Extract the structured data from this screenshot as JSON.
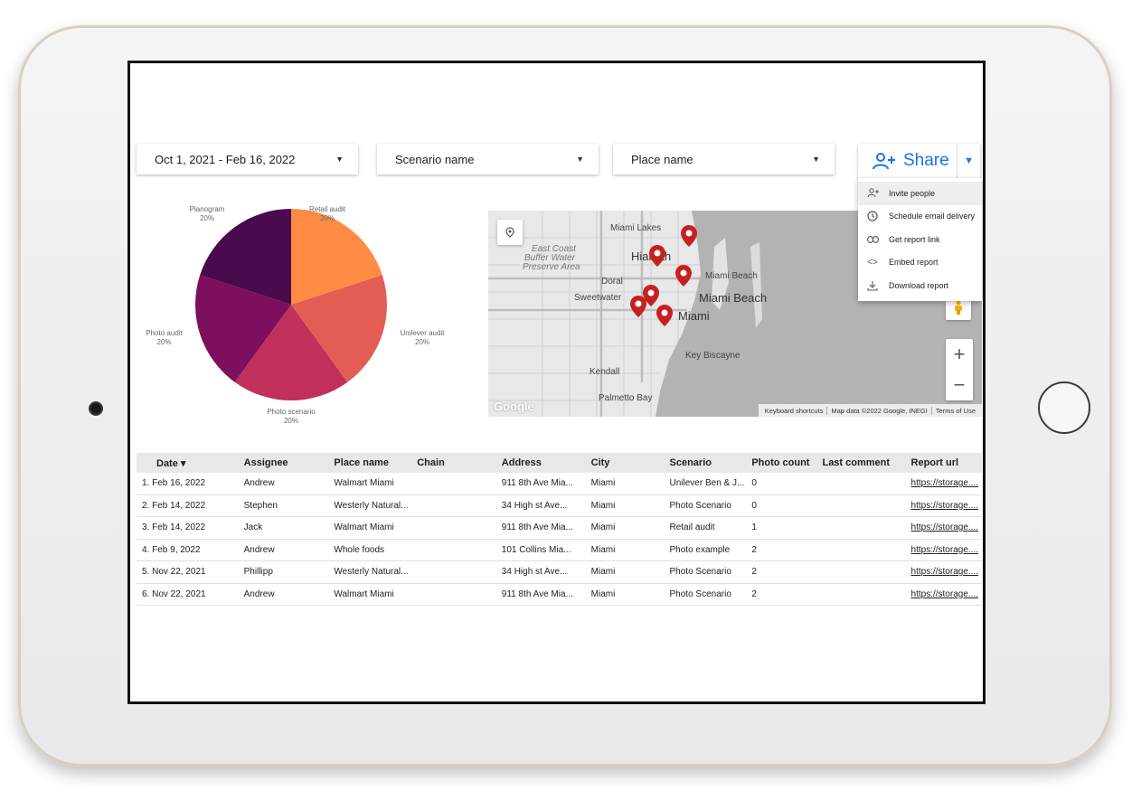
{
  "filters": {
    "date_range": "Oct 1, 2021 - Feb 16, 2022",
    "scenario": "Scenario name",
    "place": "Place name"
  },
  "share": {
    "label": "Share",
    "icon": "person-add-icon",
    "menu": [
      {
        "label": "Invite people",
        "icon": "person-add-icon"
      },
      {
        "label": "Schedule email delivery",
        "icon": "clock-icon"
      },
      {
        "label": "Get report link",
        "icon": "link-icon"
      },
      {
        "label": "Embed report",
        "icon": "code-icon"
      },
      {
        "label": "Download report",
        "icon": "download-icon"
      }
    ]
  },
  "chart_data": {
    "type": "pie",
    "slices": [
      {
        "label": "Retail audit",
        "value": 20,
        "pct_label": "20%",
        "color": "#ff8c42"
      },
      {
        "label": "Unilever audit",
        "value": 20,
        "pct_label": "20%",
        "color": "#e35d55"
      },
      {
        "label": "Photo scenario",
        "value": 20,
        "pct_label": "20%",
        "color": "#c0305a"
      },
      {
        "label": "Photo audit",
        "value": 20,
        "pct_label": "20%",
        "color": "#7e0f5e"
      },
      {
        "label": "Planogram",
        "value": 20,
        "pct_label": "20%",
        "color": "#4a0a4e"
      }
    ]
  },
  "map": {
    "labels": [
      "Miami Lakes",
      "Hialeah",
      "Doral",
      "Sweetwater",
      "Miami Beach",
      "Miami Beach",
      "Miami",
      "Key Biscayne",
      "Kendall",
      "Palmetto Bay",
      "East Coast",
      "Buffer Water",
      "Preserve Area"
    ],
    "attribution": [
      "Keyboard shortcuts",
      "Map data ©2022 Google, INEGI",
      "Terms of Use"
    ],
    "logo": "Google",
    "zoom_in": "+",
    "zoom_out": "−",
    "marker_color": "#c5221f"
  },
  "table": {
    "columns": [
      "Date ▾",
      "Assignee",
      "Place name",
      "Chain",
      "Address",
      "City",
      "Scenario",
      "Photo count",
      "Last comment",
      "Report url"
    ],
    "rows": [
      [
        "1.  Feb 16, 2022",
        "Andrew",
        "Walmart Miami",
        "",
        "911 8th Ave Mia...",
        "Miami",
        "Unilever Ben & J...",
        "0",
        "",
        "https://storage...."
      ],
      [
        "2.  Feb 14, 2022",
        "Stephen",
        "Westerly Natural...",
        "",
        "34 High st Ave...",
        "Miami",
        "Photo Scenario",
        "0",
        "",
        "https://storage...."
      ],
      [
        "3.  Feb 14, 2022",
        "Jack",
        "Walmart Miami",
        "",
        "911 8th Ave Mia...",
        "Miami",
        "Retail audit",
        "1",
        "",
        "https://storage...."
      ],
      [
        "4.  Feb 9, 2022",
        "Andrew",
        "Whole foods",
        "",
        "101 Collins Mia...",
        "Miami",
        "Photo example",
        "2",
        "",
        "https://storage...."
      ],
      [
        "5.  Nov 22, 2021",
        "Phillipp",
        "Westerly Natural...",
        "",
        "34 High st Ave...",
        "Miami",
        "Photo Scenario",
        "2",
        "",
        "https://storage...."
      ],
      [
        "6.  Nov 22, 2021",
        "Andrew",
        "Walmart Miami",
        "",
        "911 8th Ave Mia...",
        "Miami",
        "Photo Scenario",
        "2",
        "",
        "https://storage...."
      ]
    ]
  }
}
